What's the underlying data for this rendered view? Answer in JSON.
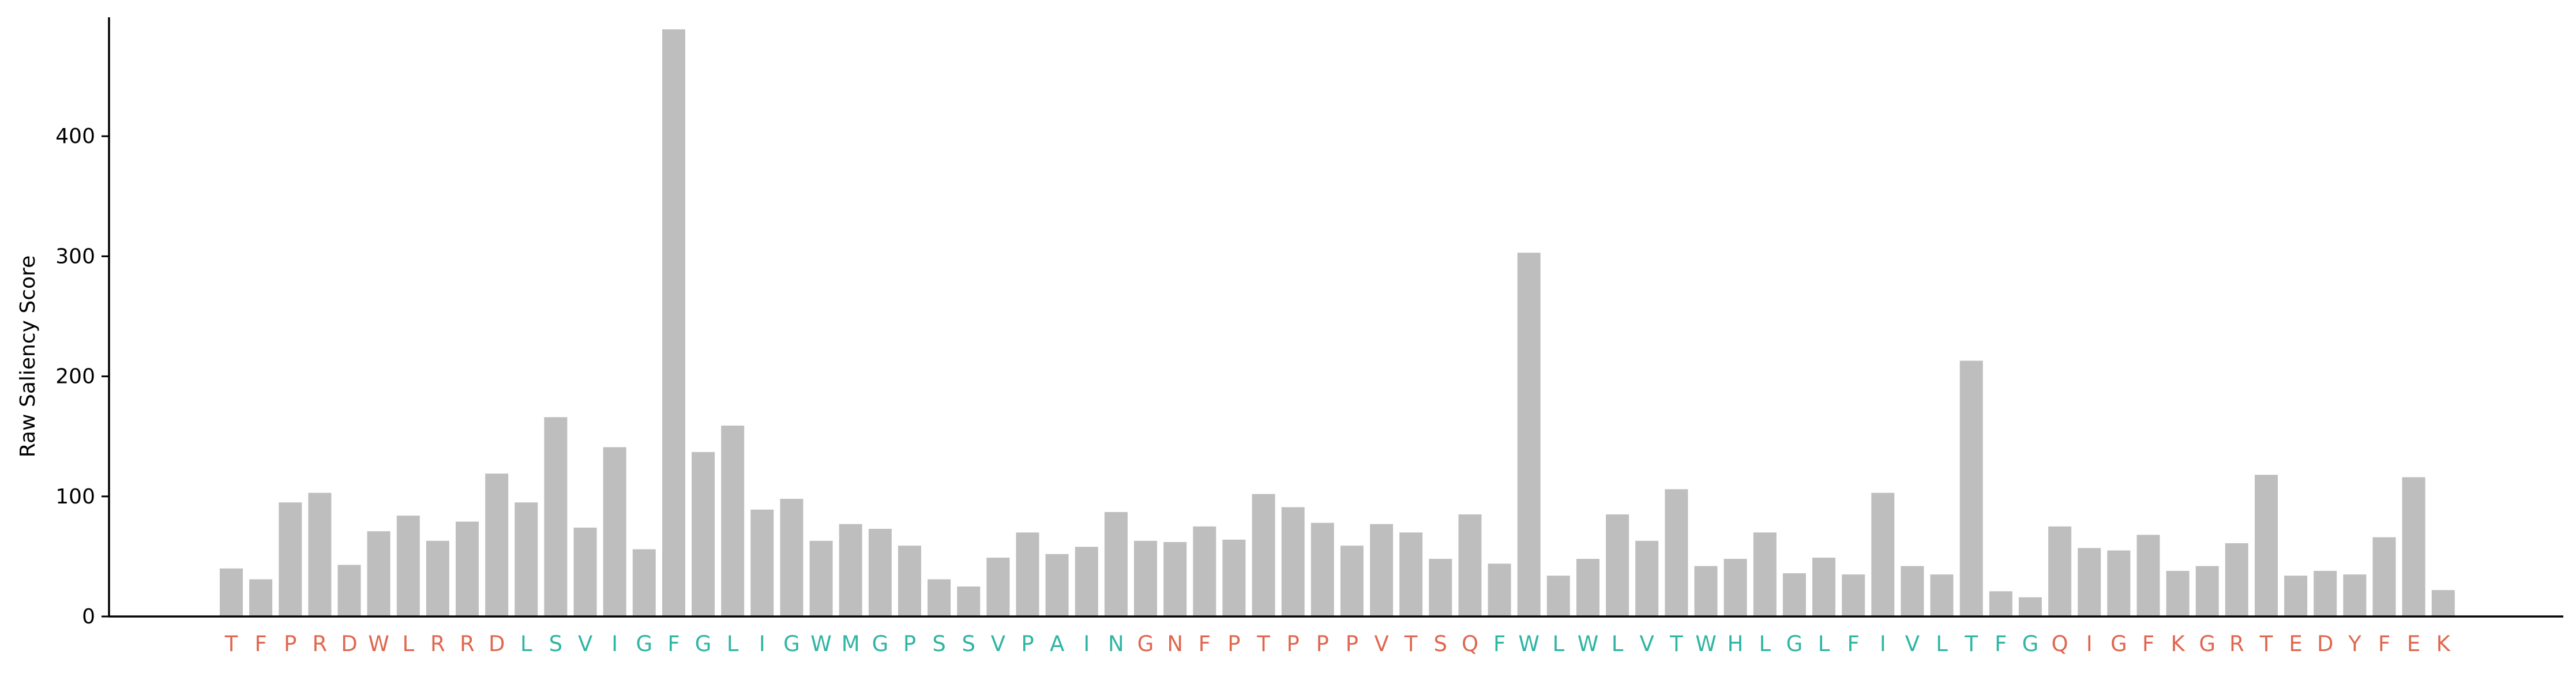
{
  "chart_data": {
    "type": "bar",
    "title": "",
    "xlabel": "",
    "ylabel": "Raw Saliency Score",
    "ylim": [
      0,
      490
    ],
    "yticks": [
      0,
      100,
      200,
      300,
      400
    ],
    "grid": false,
    "bar_color": "#bebebe",
    "label_colors": {
      "hydrophilic": "#e0674f",
      "hydrophobic": "#2fb5a3"
    },
    "categories": [
      "T",
      "F",
      "P",
      "R",
      "D",
      "W",
      "L",
      "R",
      "R",
      "D",
      "L",
      "S",
      "V",
      "I",
      "G",
      "F",
      "G",
      "L",
      "I",
      "G",
      "W",
      "M",
      "G",
      "P",
      "S",
      "S",
      "V",
      "P",
      "A",
      "I",
      "N",
      "G",
      "N",
      "F",
      "P",
      "T",
      "P",
      "P",
      "P",
      "V",
      "T",
      "S",
      "Q",
      "F",
      "W",
      "L",
      "W",
      "L",
      "V",
      "T",
      "W",
      "H",
      "L",
      "G",
      "L",
      "F",
      "I",
      "V",
      "L",
      "T",
      "F",
      "G",
      "Q",
      "I",
      "G",
      "F",
      "K",
      "G",
      "R",
      "T",
      "E",
      "D",
      "Y",
      "F",
      "E",
      "K"
    ],
    "category_groups": [
      "hydrophilic",
      "hydrophilic",
      "hydrophilic",
      "hydrophilic",
      "hydrophilic",
      "hydrophilic",
      "hydrophilic",
      "hydrophilic",
      "hydrophilic",
      "hydrophilic",
      "hydrophobic",
      "hydrophobic",
      "hydrophobic",
      "hydrophobic",
      "hydrophobic",
      "hydrophobic",
      "hydrophobic",
      "hydrophobic",
      "hydrophobic",
      "hydrophobic",
      "hydrophobic",
      "hydrophobic",
      "hydrophobic",
      "hydrophobic",
      "hydrophobic",
      "hydrophobic",
      "hydrophobic",
      "hydrophobic",
      "hydrophobic",
      "hydrophobic",
      "hydrophobic",
      "hydrophilic",
      "hydrophilic",
      "hydrophilic",
      "hydrophilic",
      "hydrophilic",
      "hydrophilic",
      "hydrophilic",
      "hydrophilic",
      "hydrophilic",
      "hydrophilic",
      "hydrophilic",
      "hydrophilic",
      "hydrophobic",
      "hydrophobic",
      "hydrophobic",
      "hydrophobic",
      "hydrophobic",
      "hydrophobic",
      "hydrophobic",
      "hydrophobic",
      "hydrophobic",
      "hydrophobic",
      "hydrophobic",
      "hydrophobic",
      "hydrophobic",
      "hydrophobic",
      "hydrophobic",
      "hydrophobic",
      "hydrophobic",
      "hydrophobic",
      "hydrophobic",
      "hydrophilic",
      "hydrophilic",
      "hydrophilic",
      "hydrophilic",
      "hydrophilic",
      "hydrophilic",
      "hydrophilic",
      "hydrophilic",
      "hydrophilic",
      "hydrophilic",
      "hydrophilic",
      "hydrophilic",
      "hydrophilic",
      "hydrophilic"
    ],
    "values": [
      40,
      31,
      95,
      103,
      43,
      71,
      84,
      63,
      79,
      119,
      95,
      166,
      74,
      141,
      56,
      489,
      137,
      159,
      89,
      98,
      63,
      77,
      73,
      59,
      31,
      25,
      49,
      70,
      52,
      58,
      87,
      63,
      62,
      75,
      64,
      102,
      91,
      78,
      59,
      77,
      70,
      48,
      85,
      44,
      303,
      34,
      48,
      85,
      63,
      106,
      42,
      48,
      70,
      36,
      49,
      35,
      103,
      42,
      35,
      213,
      21,
      16,
      75,
      57,
      55,
      68,
      38,
      42,
      61,
      118,
      34,
      38,
      35,
      66,
      116,
      22
    ]
  }
}
